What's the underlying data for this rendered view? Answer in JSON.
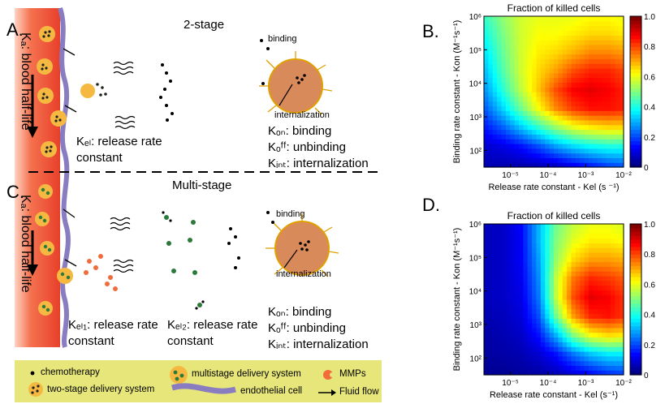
{
  "panels": {
    "a": {
      "letter": "A.",
      "title": "2-stage",
      "vessel_label": "Kₐ: blood half-life",
      "kel": "Kₑₗ: release rate",
      "kel_cont": "constant",
      "binding_label": "binding",
      "internalization_label": "internalization",
      "terms": [
        "Kₒₙ: binding",
        "Kₒᶠᶠ: unbinding",
        "Kᵢₙₜ: internalization"
      ]
    },
    "c": {
      "letter": "C.",
      "title": "Multi-stage",
      "vessel_label": "Kₐ: blood half-life",
      "kel1": "Kₑₗ₁: release rate",
      "kel1_cont": "constant",
      "kel2": "Kₑₗ₂: release rate",
      "kel2_cont": "constant",
      "binding_label": "binding",
      "internalization_label": "internalization",
      "terms": [
        "Kₒₙ: binding",
        "Kₒᶠᶠ: unbinding",
        "Kᵢₙₜ: internalization"
      ]
    },
    "b": {
      "letter": "B."
    },
    "d": {
      "letter": "D."
    }
  },
  "legend": {
    "chemotherapy": "chemotherapy",
    "two_stage": "two-stage delivery system",
    "multistage": "multistage delivery system",
    "endothelial": "endothelial cell",
    "mmps": "MMPs",
    "fluid_flow": "Fluid flow"
  },
  "colors": {
    "vessel": "#f26b4f",
    "legend_bg": "#e6e67a",
    "cell": "#d98a5a",
    "particle": "#f5b942"
  },
  "chart_data": [
    {
      "type": "heatmap",
      "title": "Fraction of killed cells",
      "xlabel": "Release rate constant - Kel (s ⁻¹)",
      "ylabel": "Binding rate constant - Kon (M⁻¹s⁻¹)",
      "x_ticks": [
        "10⁻⁵",
        "10⁻⁴",
        "10⁻³",
        "10⁻²"
      ],
      "y_ticks": [
        "10²",
        "10³",
        "10⁴",
        "10⁵",
        "10⁶"
      ],
      "colorbar_ticks": [
        "0",
        "0.2",
        "0.4",
        "0.6",
        "0.8",
        "1.0"
      ],
      "colorbar_range": [
        0,
        1.0
      ],
      "x_log_range": [
        -5.7,
        -2
      ],
      "y_log_range": [
        1.5,
        6
      ],
      "values": [
        [
          0.05,
          0.05,
          0.05,
          0.06,
          0.08,
          0.12,
          0.16,
          0.2,
          0.22
        ],
        [
          0.08,
          0.1,
          0.14,
          0.2,
          0.28,
          0.34,
          0.38,
          0.4,
          0.4
        ],
        [
          0.15,
          0.22,
          0.32,
          0.42,
          0.52,
          0.6,
          0.64,
          0.66,
          0.66
        ],
        [
          0.22,
          0.34,
          0.48,
          0.62,
          0.74,
          0.82,
          0.86,
          0.86,
          0.84
        ],
        [
          0.28,
          0.42,
          0.56,
          0.68,
          0.8,
          0.88,
          0.9,
          0.88,
          0.84
        ],
        [
          0.32,
          0.46,
          0.58,
          0.66,
          0.72,
          0.8,
          0.84,
          0.84,
          0.8
        ],
        [
          0.36,
          0.48,
          0.58,
          0.64,
          0.66,
          0.7,
          0.74,
          0.74,
          0.72
        ],
        [
          0.4,
          0.5,
          0.58,
          0.62,
          0.62,
          0.64,
          0.66,
          0.66,
          0.64
        ],
        [
          0.44,
          0.52,
          0.58,
          0.6,
          0.6,
          0.6,
          0.62,
          0.62,
          0.6
        ]
      ]
    },
    {
      "type": "heatmap",
      "title": "Fraction of killed cells",
      "xlabel": "Release rate constant - Kel (s⁻¹)",
      "ylabel": "Binding rate constant - Kon (M⁻¹s⁻¹)",
      "x_ticks": [
        "10⁻⁵",
        "10⁻⁴",
        "10⁻³",
        "10⁻²"
      ],
      "y_ticks": [
        "10²",
        "10³",
        "10⁴",
        "10⁵",
        "10⁶"
      ],
      "colorbar_ticks": [
        "0",
        "0.2",
        "0.4",
        "0.6",
        "0.8",
        "1.0"
      ],
      "colorbar_range": [
        0,
        1.0
      ],
      "x_log_range": [
        -5.7,
        -2
      ],
      "y_log_range": [
        1.5,
        6
      ],
      "values": [
        [
          0.02,
          0.02,
          0.03,
          0.04,
          0.06,
          0.1,
          0.14,
          0.18,
          0.2
        ],
        [
          0.03,
          0.04,
          0.05,
          0.08,
          0.14,
          0.24,
          0.32,
          0.36,
          0.36
        ],
        [
          0.04,
          0.05,
          0.07,
          0.14,
          0.3,
          0.5,
          0.62,
          0.66,
          0.64
        ],
        [
          0.05,
          0.06,
          0.09,
          0.2,
          0.48,
          0.72,
          0.84,
          0.86,
          0.82
        ],
        [
          0.06,
          0.07,
          0.1,
          0.24,
          0.56,
          0.8,
          0.9,
          0.88,
          0.82
        ],
        [
          0.06,
          0.07,
          0.11,
          0.26,
          0.56,
          0.76,
          0.84,
          0.82,
          0.78
        ],
        [
          0.06,
          0.07,
          0.12,
          0.28,
          0.52,
          0.66,
          0.72,
          0.72,
          0.7
        ],
        [
          0.06,
          0.07,
          0.12,
          0.3,
          0.5,
          0.6,
          0.64,
          0.64,
          0.62
        ],
        [
          0.06,
          0.07,
          0.13,
          0.3,
          0.48,
          0.56,
          0.6,
          0.6,
          0.58
        ]
      ]
    }
  ]
}
